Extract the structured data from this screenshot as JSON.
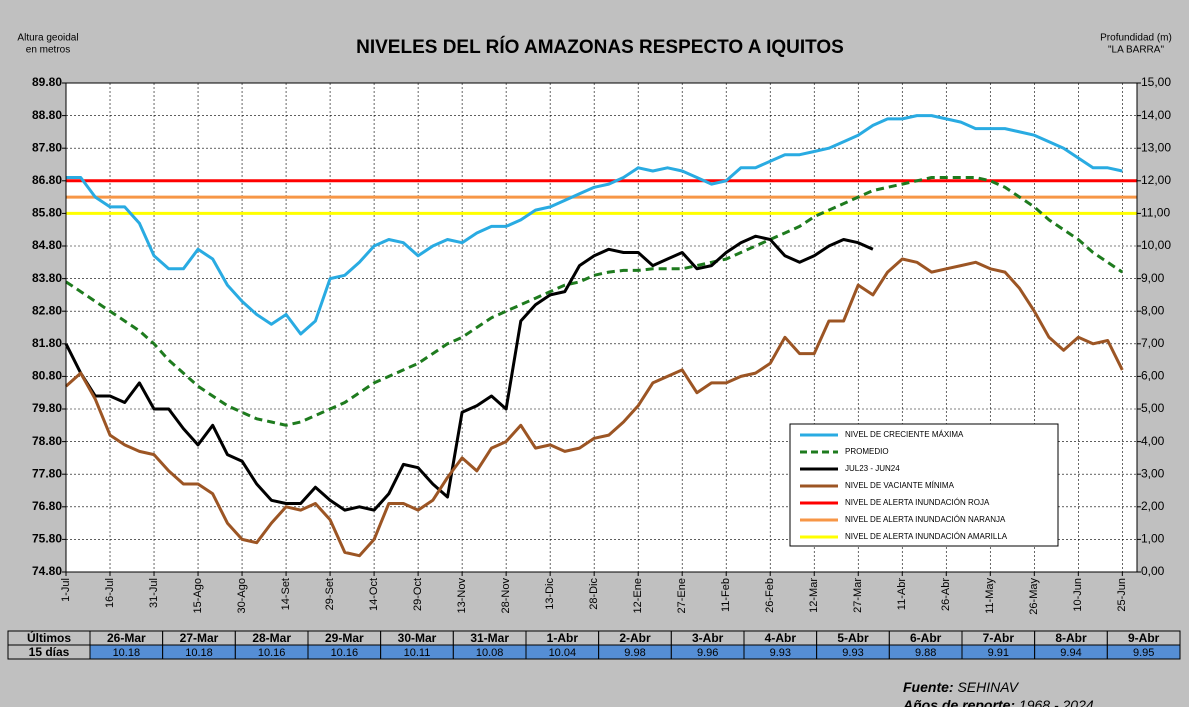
{
  "chart_data": {
    "type": "line",
    "title": "NIVELES  DEL RÍO AMAZONAS  RESPECTO A IQUITOS",
    "y_label": [
      "Altura geoidal",
      "en metros"
    ],
    "y2_label": [
      "Profundidad (m)",
      "\"LA BARRA\""
    ],
    "categories": [
      "1-Jul",
      null,
      null,
      "16-Jul",
      null,
      null,
      "31-Jul",
      null,
      null,
      "15-Ago",
      null,
      null,
      "30-Ago",
      null,
      null,
      "14-Set",
      null,
      null,
      "29-Set",
      null,
      null,
      "14-Oct",
      null,
      null,
      "29-Oct",
      null,
      null,
      "13-Nov",
      null,
      null,
      "28-Nov",
      null,
      null,
      "13-Dic",
      null,
      null,
      "28-Dic",
      null,
      null,
      "12-Ene",
      null,
      null,
      "27-Ene",
      null,
      null,
      "11-Feb",
      null,
      null,
      "26-Feb",
      null,
      null,
      "12-Mar",
      null,
      null,
      "27-Mar",
      null,
      null,
      "11-Abr",
      null,
      null,
      "26-Abr",
      null,
      null,
      "11-May",
      null,
      null,
      "26-May",
      null,
      null,
      "10-Jun",
      null,
      null,
      "25-Jun"
    ],
    "series": [
      {
        "name": "NIVEL DE CRECIENTE MÁXIMA",
        "color": "#29abe2",
        "line_style": "solid",
        "values": [
          86.9,
          86.9,
          86.3,
          86.0,
          86.0,
          85.5,
          84.5,
          84.1,
          84.1,
          84.7,
          84.4,
          83.6,
          83.1,
          82.7,
          82.4,
          82.7,
          82.1,
          82.5,
          83.8,
          83.9,
          84.3,
          84.8,
          85.0,
          84.9,
          84.5,
          84.8,
          85.0,
          84.9,
          85.2,
          85.4,
          85.4,
          85.6,
          85.9,
          86.0,
          86.2,
          86.4,
          86.6,
          86.7,
          86.9,
          87.2,
          87.1,
          87.2,
          87.1,
          86.9,
          86.7,
          86.8,
          87.2,
          87.2,
          87.4,
          87.6,
          87.6,
          87.7,
          87.8,
          88.0,
          88.2,
          88.5,
          88.7,
          88.7,
          88.8,
          88.8,
          88.7,
          88.6,
          88.4,
          88.4,
          88.4,
          88.3,
          88.2,
          88.0,
          87.8,
          87.5,
          87.2,
          87.2,
          87.1
        ]
      },
      {
        "name": "PROMEDIO",
        "color": "#1e7b1e",
        "line_style": "dashed",
        "values": [
          83.7,
          83.4,
          83.1,
          82.8,
          82.5,
          82.2,
          81.8,
          81.3,
          80.9,
          80.5,
          80.2,
          79.9,
          79.7,
          79.5,
          79.4,
          79.3,
          79.4,
          79.6,
          79.8,
          80.0,
          80.3,
          80.6,
          80.8,
          81.0,
          81.2,
          81.5,
          81.8,
          82.0,
          82.3,
          82.6,
          82.8,
          83.0,
          83.2,
          83.4,
          83.6,
          83.7,
          83.9,
          84.0,
          84.05,
          84.05,
          84.1,
          84.1,
          84.1,
          84.2,
          84.3,
          84.4,
          84.6,
          84.8,
          85.0,
          85.2,
          85.4,
          85.7,
          85.9,
          86.1,
          86.3,
          86.5,
          86.6,
          86.7,
          86.8,
          86.9,
          86.9,
          86.9,
          86.9,
          86.8,
          86.6,
          86.3,
          86.0,
          85.6,
          85.3,
          85.0,
          84.6,
          84.3,
          84.0
        ]
      },
      {
        "name": "JUL23 - JUN24",
        "color": "#000000",
        "line_style": "solid",
        "values": [
          81.8,
          80.9,
          80.2,
          80.2,
          80.0,
          80.6,
          79.8,
          79.8,
          79.2,
          78.7,
          79.3,
          78.4,
          78.2,
          77.5,
          77.0,
          76.9,
          76.9,
          77.4,
          77.0,
          76.7,
          76.8,
          76.7,
          77.2,
          78.1,
          78.0,
          77.5,
          77.1,
          79.7,
          79.9,
          80.2,
          79.8,
          82.5,
          83.0,
          83.3,
          83.4,
          84.2,
          84.5,
          84.7,
          84.6,
          84.6,
          84.2,
          84.4,
          84.6,
          84.1,
          84.2,
          84.6,
          84.9,
          85.1,
          85.0,
          84.5,
          84.3,
          84.5,
          84.8,
          85.0,
          84.9,
          84.7,
          null,
          null,
          null,
          null,
          null,
          null,
          null,
          null,
          null,
          null,
          null,
          null,
          null,
          null,
          null,
          null,
          null
        ]
      },
      {
        "name": "NIVEL DE VACIANTE MÍNIMA",
        "color": "#9c5524",
        "line_style": "solid",
        "values": [
          80.5,
          80.9,
          80.1,
          79.0,
          78.7,
          78.5,
          78.4,
          77.9,
          77.5,
          77.5,
          77.2,
          76.3,
          75.8,
          75.7,
          76.3,
          76.8,
          76.7,
          76.9,
          76.4,
          75.4,
          75.3,
          75.8,
          76.9,
          76.9,
          76.7,
          77.0,
          77.7,
          78.3,
          77.9,
          78.6,
          78.8,
          79.3,
          78.6,
          78.7,
          78.5,
          78.6,
          78.9,
          79.0,
          79.4,
          79.9,
          80.6,
          80.8,
          81.0,
          80.3,
          80.6,
          80.6,
          80.8,
          80.9,
          81.2,
          82.0,
          81.5,
          81.5,
          82.5,
          82.5,
          83.6,
          83.3,
          84.0,
          84.4,
          84.3,
          84.0,
          84.1,
          84.2,
          84.3,
          84.1,
          84.0,
          83.5,
          82.8,
          82.0,
          81.6,
          82.0,
          81.8,
          81.9,
          81.0
        ]
      }
    ],
    "reference_lines": [
      {
        "name": "NIVEL DE ALERTA INUNDACIÓN ROJA",
        "color": "#ff0000",
        "value": 86.8
      },
      {
        "name": "NIVEL DE ALERTA INUNDACIÓN NARANJA",
        "color": "#f79646",
        "value": 86.3
      },
      {
        "name": "NIVEL DE ALERTA INUNDACIÓN AMARILLA",
        "color": "#ffff00",
        "value": 85.8
      }
    ],
    "ylim": [
      74.8,
      89.8
    ],
    "yticks": [
      {
        "value": 74.8,
        "label": "74.80"
      },
      {
        "value": 75.8,
        "label": "75.80"
      },
      {
        "value": 76.8,
        "label": "76.80"
      },
      {
        "value": 77.8,
        "label": "77.80"
      },
      {
        "value": 78.8,
        "label": "78.80"
      },
      {
        "value": 79.8,
        "label": "79.80"
      },
      {
        "value": 80.8,
        "label": "80.80"
      },
      {
        "value": 81.8,
        "label": "81.80"
      },
      {
        "value": 82.8,
        "label": "82.80"
      },
      {
        "value": 83.8,
        "label": "83.80"
      },
      {
        "value": 84.8,
        "label": "84.80"
      },
      {
        "value": 85.8,
        "label": "85.80"
      },
      {
        "value": 86.8,
        "label": "86.80"
      },
      {
        "value": 87.8,
        "label": "87.80"
      },
      {
        "value": 88.8,
        "label": "88.80"
      },
      {
        "value": 89.8,
        "label": "89.80"
      }
    ],
    "y2lim": [
      0,
      15
    ],
    "y2ticks": [
      {
        "value": 0,
        "label": "0,00"
      },
      {
        "value": 1,
        "label": "1,00"
      },
      {
        "value": 2,
        "label": "2,00"
      },
      {
        "value": 3,
        "label": "3,00"
      },
      {
        "value": 4,
        "label": "4,00"
      },
      {
        "value": 5,
        "label": "5,00"
      },
      {
        "value": 6,
        "label": "6,00"
      },
      {
        "value": 7,
        "label": "7,00"
      },
      {
        "value": 8,
        "label": "8,00"
      },
      {
        "value": 9,
        "label": "9,00"
      },
      {
        "value": 10,
        "label": "10,00"
      },
      {
        "value": 11,
        "label": "11,00"
      },
      {
        "value": 12,
        "label": "12,00"
      },
      {
        "value": 13,
        "label": "13,00"
      },
      {
        "value": 14,
        "label": "14,00"
      },
      {
        "value": 15,
        "label": "15,00"
      }
    ],
    "grid": true,
    "legend": "lower right"
  },
  "table": {
    "row_labels": [
      "Últimos",
      "15 días"
    ],
    "dates": [
      "26-Mar",
      "27-Mar",
      "28-Mar",
      "29-Mar",
      "30-Mar",
      "31-Mar",
      "1-Abr",
      "2-Abr",
      "3-Abr",
      "4-Abr",
      "5-Abr",
      "6-Abr",
      "7-Abr",
      "8-Abr",
      "9-Abr"
    ],
    "values": [
      10.18,
      10.18,
      10.16,
      10.16,
      10.11,
      10.08,
      10.04,
      9.98,
      9.96,
      9.93,
      9.93,
      9.88,
      9.91,
      9.94,
      9.95
    ]
  },
  "footer": {
    "source_label": "Fuente:",
    "source": "SEHINAV",
    "years_label": "Años de reporte:",
    "years": "1968 - 2024"
  }
}
